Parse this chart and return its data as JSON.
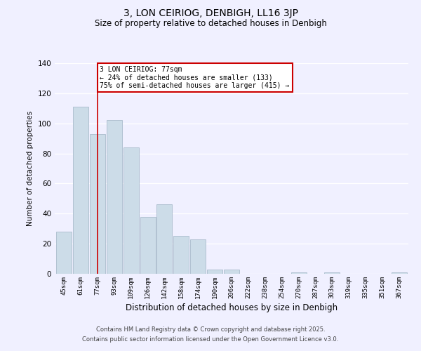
{
  "title": "3, LON CEIRIOG, DENBIGH, LL16 3JP",
  "subtitle": "Size of property relative to detached houses in Denbigh",
  "xlabel": "Distribution of detached houses by size in Denbigh",
  "ylabel": "Number of detached properties",
  "bar_labels": [
    "45sqm",
    "61sqm",
    "77sqm",
    "93sqm",
    "109sqm",
    "126sqm",
    "142sqm",
    "158sqm",
    "174sqm",
    "190sqm",
    "206sqm",
    "222sqm",
    "238sqm",
    "254sqm",
    "270sqm",
    "287sqm",
    "303sqm",
    "319sqm",
    "335sqm",
    "351sqm",
    "367sqm"
  ],
  "bar_values": [
    28,
    111,
    93,
    102,
    84,
    38,
    46,
    25,
    23,
    3,
    3,
    0,
    0,
    0,
    1,
    0,
    1,
    0,
    0,
    0,
    1
  ],
  "bar_color": "#ccdce8",
  "bar_edgecolor": "#aabccc",
  "vline_x_index": 2,
  "vline_color": "#cc0000",
  "ylim": [
    0,
    140
  ],
  "yticks": [
    0,
    20,
    40,
    60,
    80,
    100,
    120,
    140
  ],
  "annotation_text": "3 LON CEIRIOG: 77sqm\n← 24% of detached houses are smaller (133)\n75% of semi-detached houses are larger (415) →",
  "annotation_box_edgecolor": "#cc0000",
  "footer_line1": "Contains HM Land Registry data © Crown copyright and database right 2025.",
  "footer_line2": "Contains public sector information licensed under the Open Government Licence v3.0.",
  "background_color": "#f0f0ff",
  "grid_color": "#ffffff"
}
